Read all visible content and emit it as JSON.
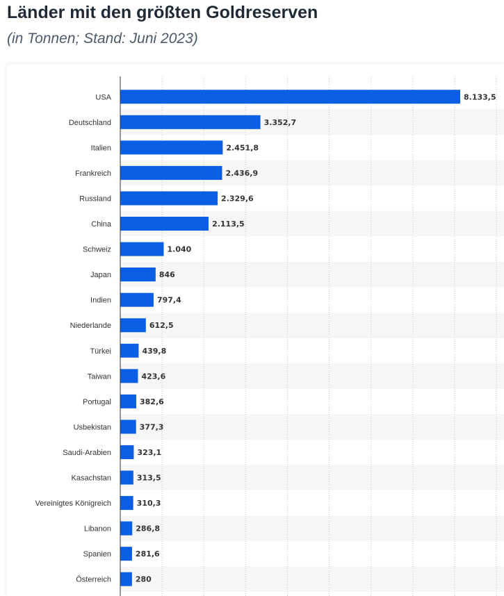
{
  "title": "Länder mit den größten Goldreserven",
  "subtitle": "(in Tonnen; Stand: Juni 2023)",
  "colors": {
    "bar": "#0b5fe4",
    "band": "#f6f6f6",
    "grid": "#c8c8c8",
    "axis": "#333333"
  },
  "chart_data": {
    "type": "bar",
    "orientation": "horizontal",
    "categories": [
      "USA",
      "Deutschland",
      "Italien",
      "Frankreich",
      "Russland",
      "China",
      "Schweiz",
      "Japan",
      "Indien",
      "Niederlande",
      "Türkei",
      "Taiwan",
      "Portugal",
      "Usbekistan",
      "Saudi-Arabien",
      "Kasachstan",
      "Vereinigtes Königreich",
      "Libanon",
      "Spanien",
      "Österreich"
    ],
    "values": [
      8133.5,
      3352.7,
      2451.8,
      2436.9,
      2329.6,
      2113.5,
      1040,
      846,
      797.4,
      612.5,
      439.8,
      423.6,
      382.6,
      377.3,
      323.1,
      313.5,
      310.3,
      286.8,
      281.6,
      280
    ],
    "value_labels": [
      "8.133,5",
      "3.352,7",
      "2.451,8",
      "2.436,9",
      "2.329,6",
      "2.113,5",
      "1.040",
      "846",
      "797,4",
      "612,5",
      "439,8",
      "423,6",
      "382,6",
      "377,3",
      "323,1",
      "313,5",
      "310,3",
      "286,8",
      "281,6",
      "280"
    ],
    "xlim": [
      0,
      9000
    ],
    "grid": true
  }
}
